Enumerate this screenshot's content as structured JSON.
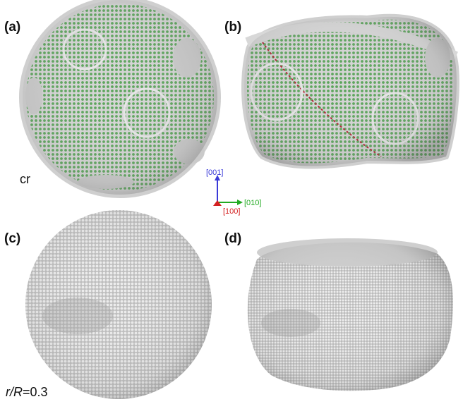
{
  "panels": [
    {
      "label": "(a)"
    },
    {
      "label": "(b)"
    },
    {
      "label": "(c)"
    },
    {
      "label": "(d)"
    }
  ],
  "annotations": {
    "structure": "cr",
    "ratio_var": "r/R",
    "ratio_value": "=0.3"
  },
  "axes_triad": {
    "z_label": "[001]",
    "y_label": "[010]",
    "x_label": "[100]",
    "z_color": "#3a3ad8",
    "y_color": "#22aa22",
    "x_color": "#d42020"
  },
  "colors": {
    "atom_gray": "#c8c8c8",
    "atom_green": "#3f9d3f",
    "defect_red": "#b02030"
  }
}
